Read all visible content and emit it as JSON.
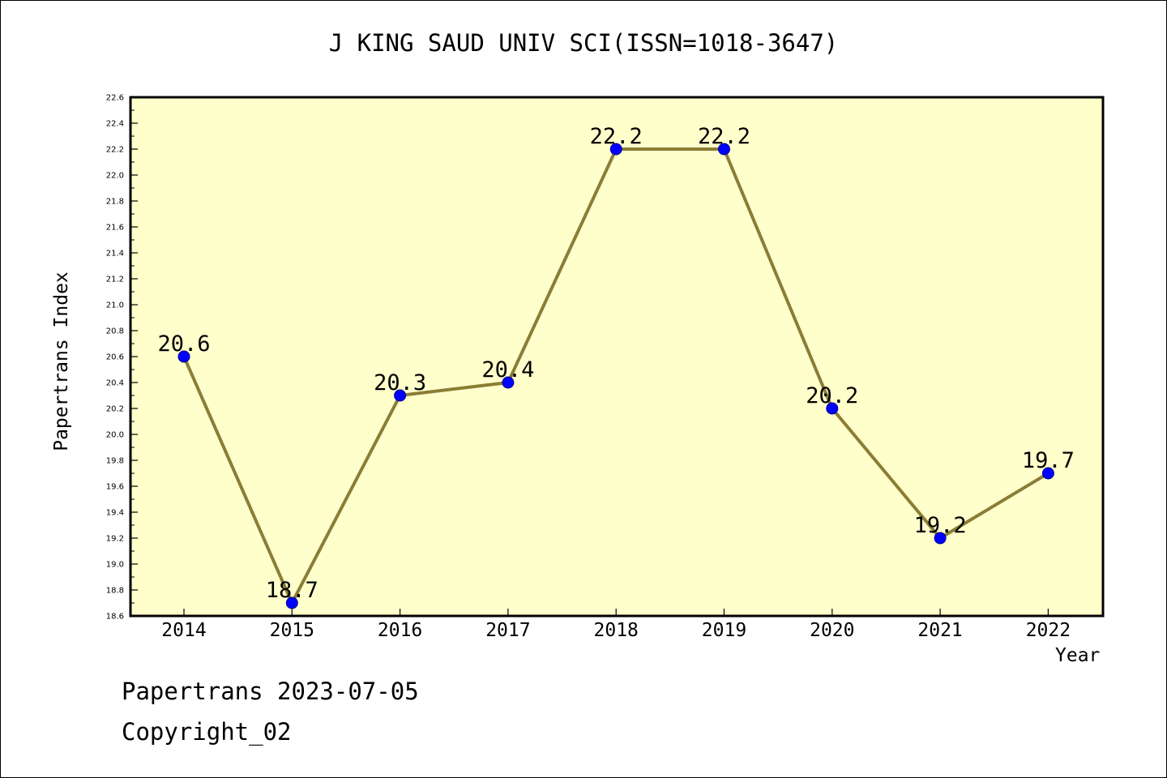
{
  "chart_data": {
    "type": "line",
    "title": "J KING SAUD UNIV SCI(ISSN=1018-3647)",
    "xlabel": "Year",
    "ylabel": "Papertrans Index",
    "categories": [
      "2014",
      "2015",
      "2016",
      "2017",
      "2018",
      "2019",
      "2020",
      "2021",
      "2022"
    ],
    "values": [
      20.6,
      18.7,
      20.3,
      20.4,
      22.2,
      22.2,
      20.2,
      19.2,
      19.7
    ],
    "data_labels": [
      "20.6",
      "18.7",
      "20.3",
      "20.4",
      "22.2",
      "22.2",
      "20.2",
      "19.2",
      "19.7"
    ],
    "ylim": [
      18.6,
      22.6
    ],
    "yticks": [
      "18.6",
      "18.8",
      "19.0",
      "19.2",
      "19.4",
      "19.6",
      "19.8",
      "20.0",
      "20.2",
      "20.4",
      "20.6",
      "20.8",
      "21.0",
      "21.2",
      "21.4",
      "21.6",
      "21.8",
      "22.0",
      "22.2",
      "22.4",
      "22.6"
    ],
    "grid": false,
    "colors": {
      "plot_background": "#ffffcc",
      "line": "#8b7d35",
      "marker": "#0000ff"
    }
  },
  "footer": {
    "date_line": "Papertrans 2023-07-05",
    "copyright": "Copyright_02"
  }
}
